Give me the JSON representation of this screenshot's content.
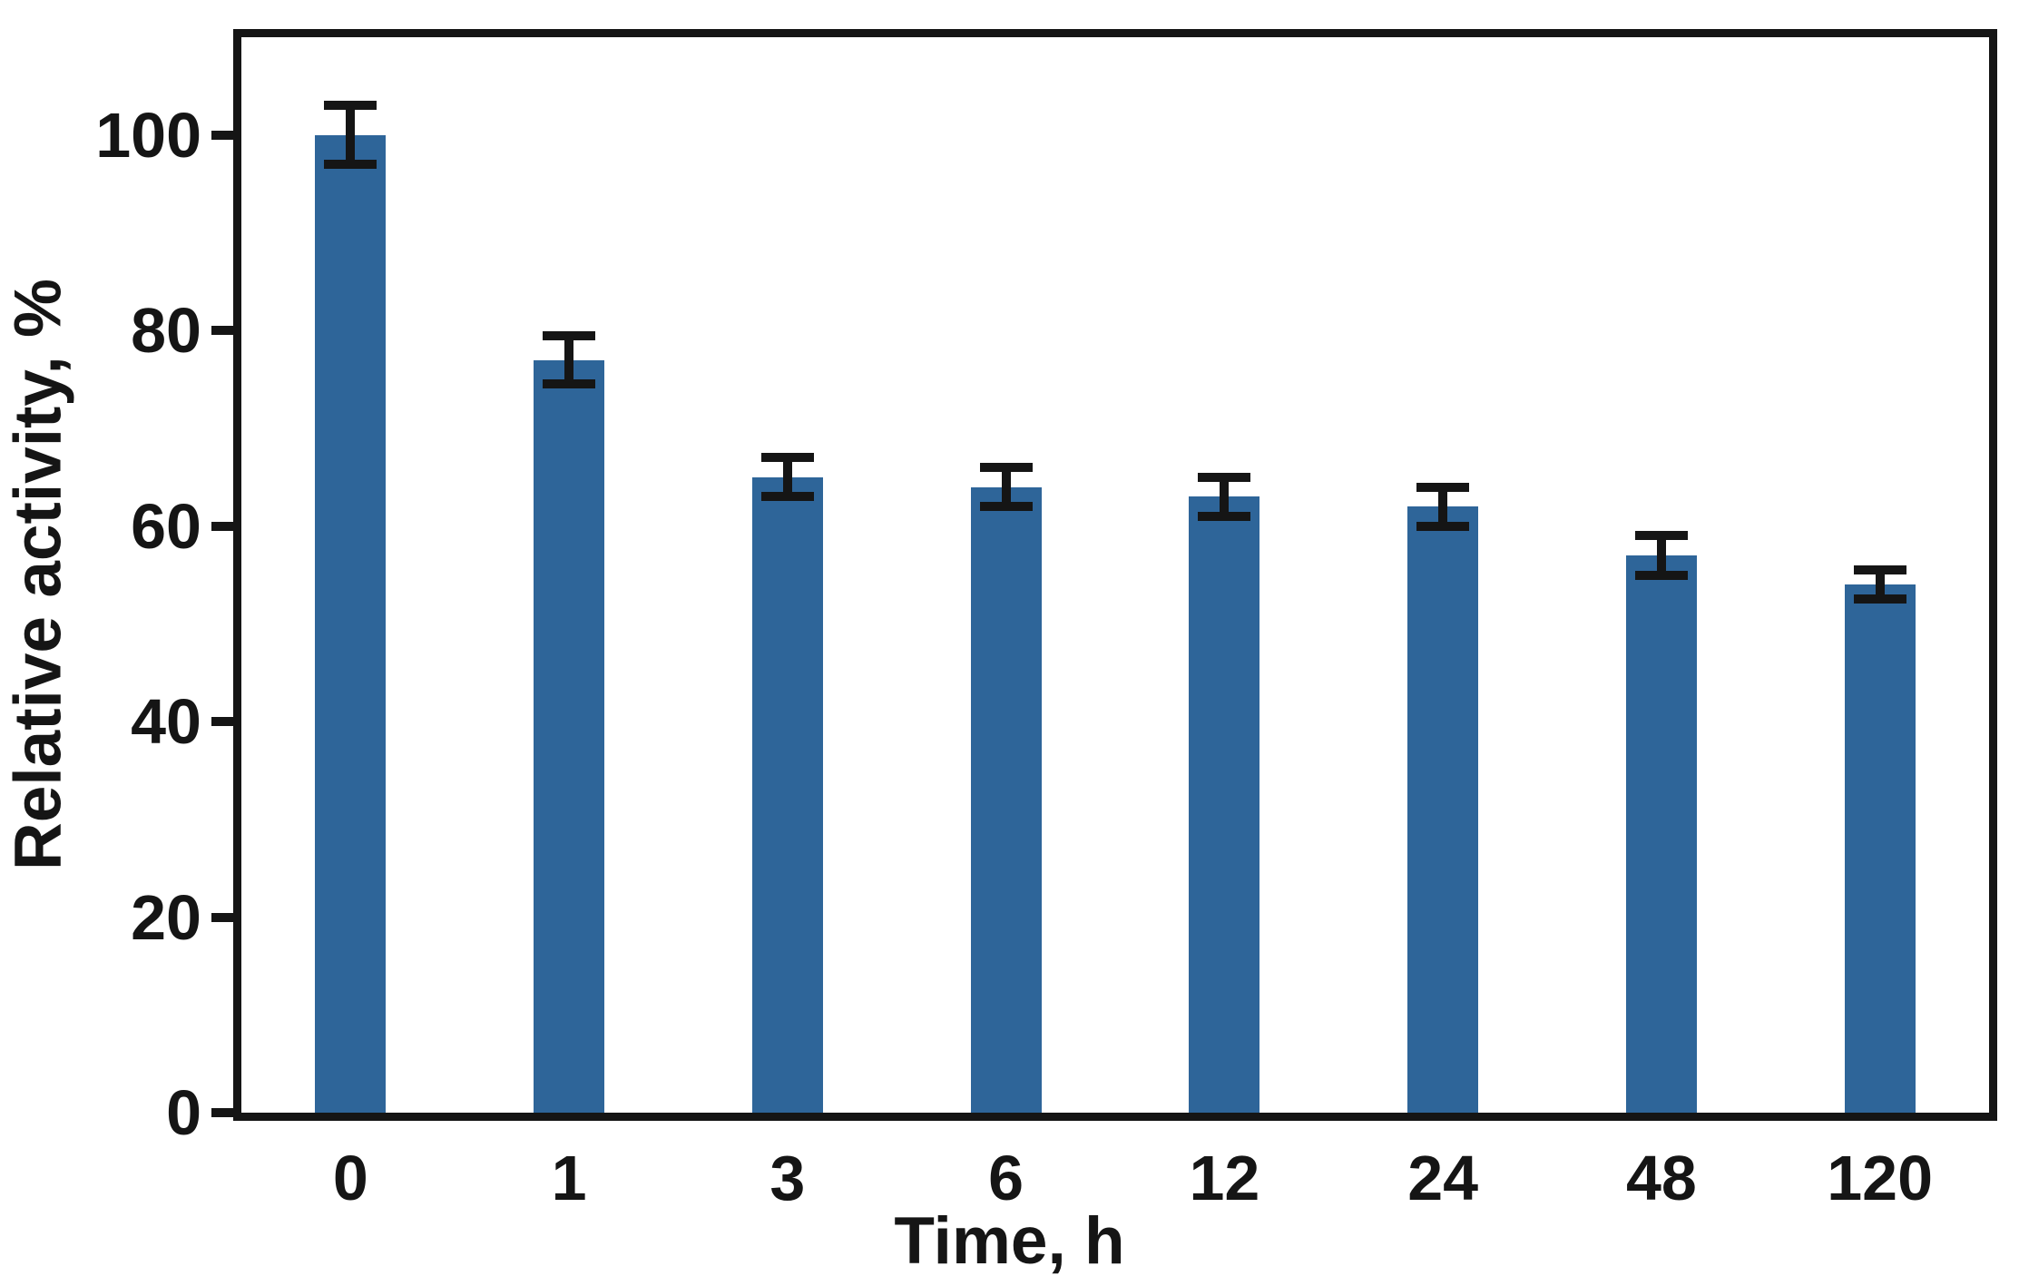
{
  "chart_data": {
    "type": "bar",
    "title": "",
    "xlabel": "Time, h",
    "ylabel": "Relative activity, %",
    "categories": [
      "0",
      "1",
      "3",
      "6",
      "12",
      "24",
      "48",
      "120"
    ],
    "values": [
      100,
      77,
      65,
      64,
      63,
      62,
      57,
      54
    ],
    "error_bars": [
      3,
      2.5,
      2,
      2,
      2,
      2,
      2,
      1.5
    ],
    "yticks": [
      0,
      20,
      40,
      60,
      80,
      100
    ],
    "ylim": [
      0,
      110
    ],
    "grid": false,
    "legend_position": "none",
    "bar_color": "#2e6599",
    "axis_color": "#151515",
    "background_color": "#ffffff"
  }
}
